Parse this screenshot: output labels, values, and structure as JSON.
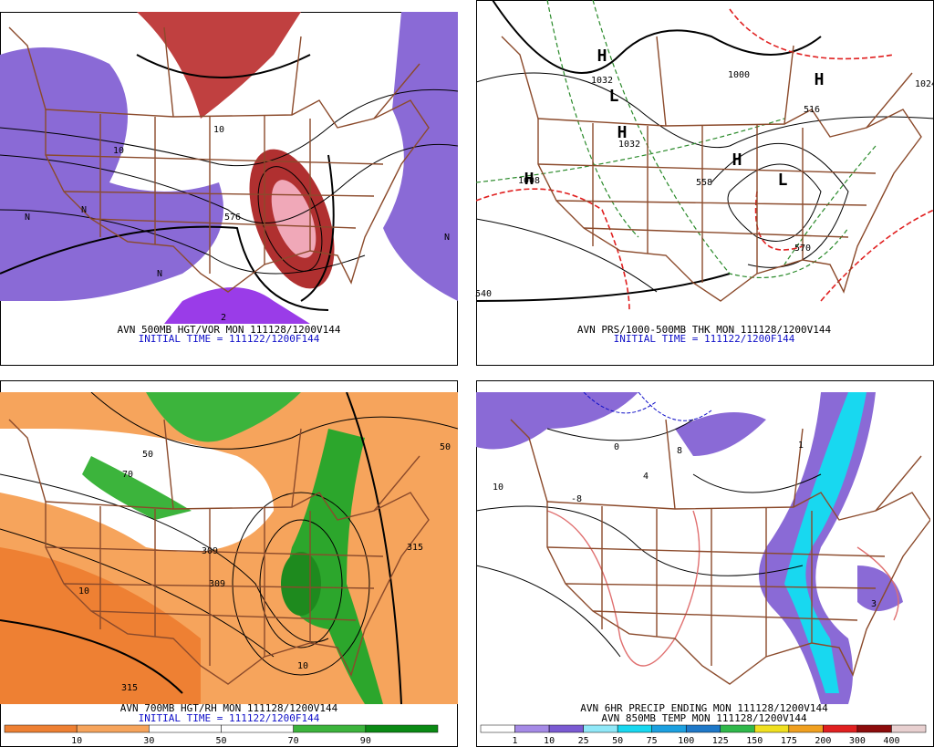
{
  "panels": [
    {
      "caption": "AVN 500MB HGT/VOR MON 111128/1200V144",
      "subcaption": "INITIAL TIME = 111122/1200F144",
      "labels": [
        "576",
        "10",
        "10",
        "N",
        "N",
        "N",
        "N",
        "2"
      ]
    },
    {
      "caption": "AVN PRS/1000-500MB THK MON 111128/1200V144",
      "subcaption": "INITIAL TIME = 111122/1200F144",
      "labels": [
        "H",
        "H",
        "H",
        "H",
        "H",
        "L",
        "L",
        "1032",
        "1032",
        "1000",
        "1024",
        "1008",
        "570",
        "540",
        "516",
        "558"
      ]
    },
    {
      "caption": "AVN 700MB HGT/RH MON 111128/1200V144",
      "subcaption": "INITIAL TIME = 111122/1200F144",
      "labels": [
        "309",
        "309",
        "315",
        "315",
        "10",
        "10",
        "50",
        "50",
        "70"
      ],
      "colorbar": {
        "labels": [
          10,
          30,
          50,
          70,
          90
        ],
        "colors": [
          "#ee8033",
          "#f6a45c",
          "#ffffff",
          "#ffffff",
          "#3cb43c",
          "#0a8a14"
        ]
      }
    },
    {
      "caption": "AVN 6HR PRECIP ENDING MON 111128/1200V144",
      "subcaption": "AVN 850MB TEMP MON 111128/1200V144",
      "labels": [
        "10",
        "4",
        "8",
        "-8",
        "3",
        "1",
        "0"
      ],
      "colorbar": {
        "labels": [
          1,
          10,
          25,
          50,
          75,
          100,
          125,
          150,
          175,
          200,
          300,
          400
        ],
        "colors": [
          "#ffffff",
          "#a58ae6",
          "#7a5ad2",
          "#90e8f8",
          "#18d8f0",
          "#1ca0e0",
          "#1e78c8",
          "#2fb84a",
          "#f0e020",
          "#f0a020",
          "#e02020",
          "#8c0c0c",
          "#e8d0d0"
        ]
      }
    }
  ]
}
